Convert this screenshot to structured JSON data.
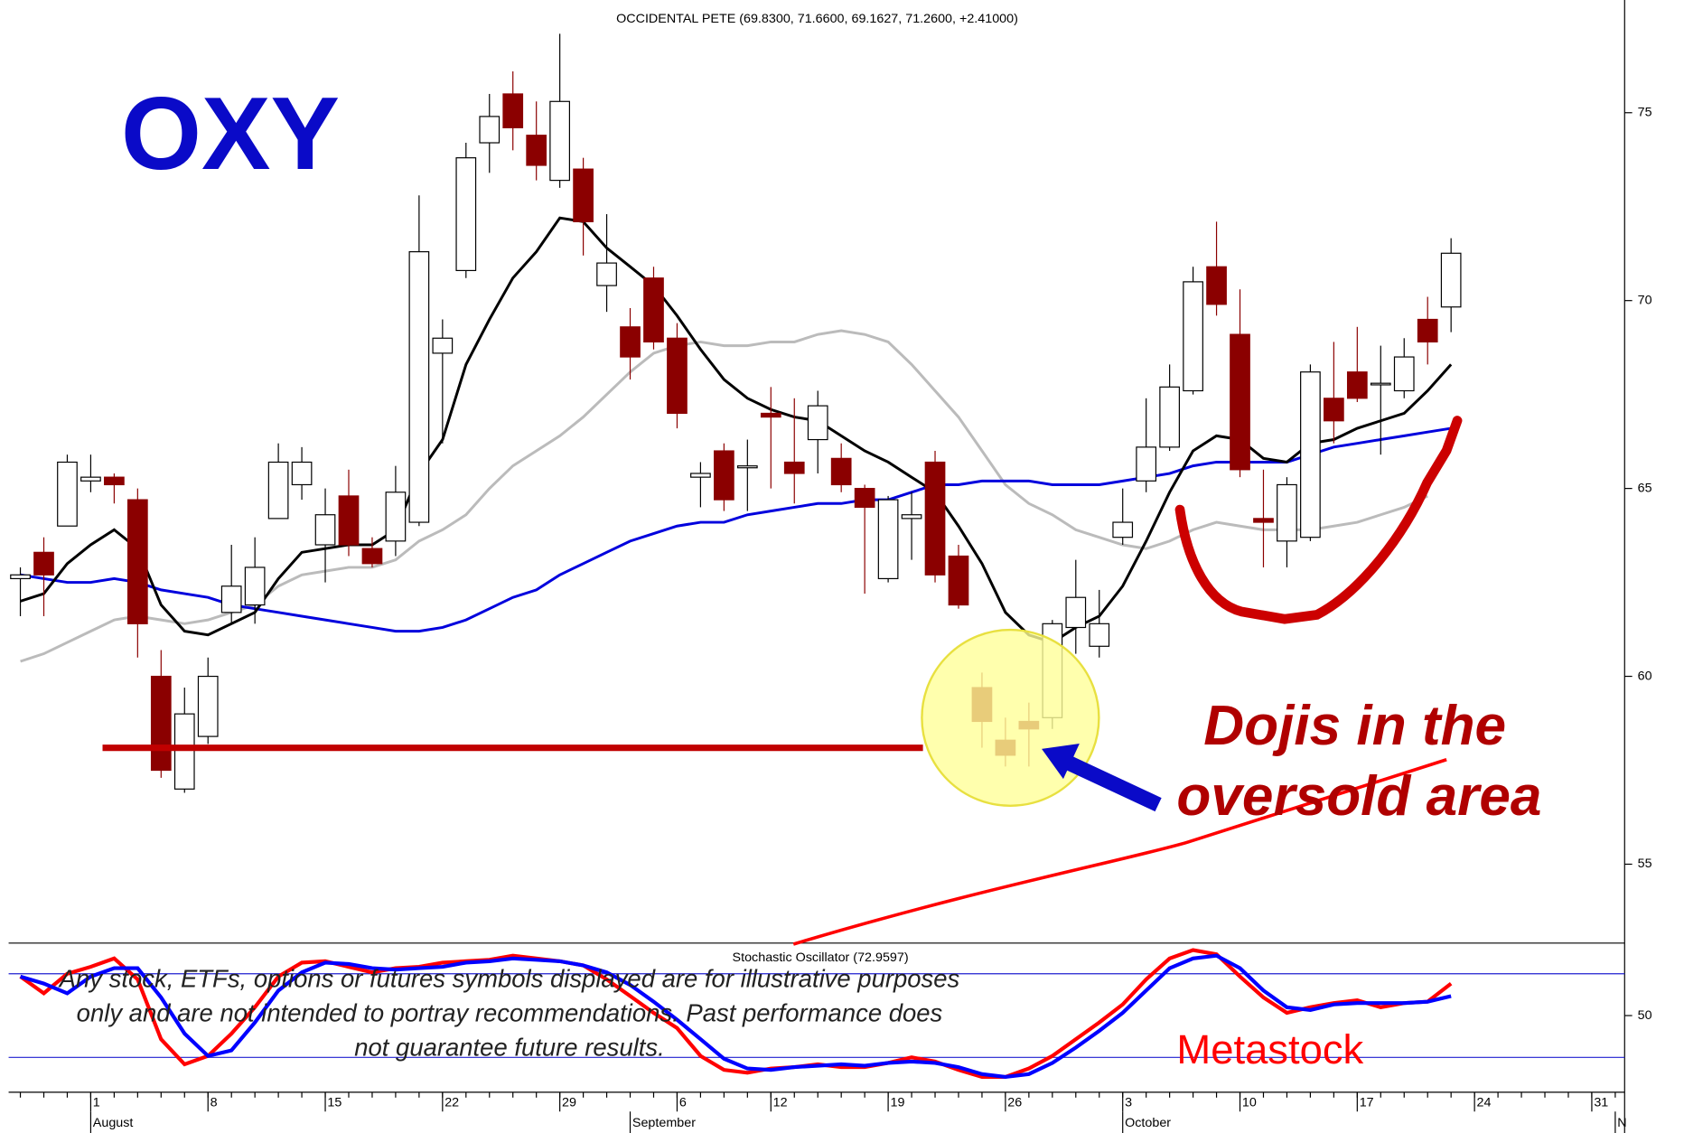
{
  "chart_data": [
    {
      "type": "candlestick",
      "title": "OCCIDENTAL PETE (69.8300, 71.6600, 69.1627, 71.2600, +2.41000)",
      "annotations": [
        "OXY",
        "Dojis in the",
        "oversold area"
      ],
      "x": [
        -3,
        -2,
        -1,
        0,
        1,
        2,
        3,
        4,
        5,
        6,
        7,
        8,
        9,
        10,
        11,
        12,
        13,
        14,
        15,
        16,
        17,
        18,
        19,
        20,
        21,
        22,
        23,
        24,
        25,
        26,
        27,
        28,
        29,
        30,
        31,
        32,
        33,
        34,
        35,
        36,
        37,
        38,
        39,
        40,
        41,
        42,
        43,
        44,
        45,
        46,
        47,
        48,
        49,
        50,
        51,
        52,
        53,
        54,
        55,
        56,
        57,
        58
      ],
      "open": [
        62.6,
        63.3,
        64.0,
        65.2,
        65.3,
        64.7,
        60.0,
        57.0,
        58.4,
        61.7,
        61.9,
        64.2,
        65.1,
        63.5,
        64.8,
        63.4,
        63.6,
        64.1,
        68.6,
        70.8,
        74.2,
        75.5,
        74.4,
        73.2,
        73.5,
        70.4,
        69.3,
        70.6,
        69.0,
        65.3,
        66.0,
        65.55,
        67.0,
        65.7,
        66.3,
        65.8,
        65.0,
        62.6,
        64.2,
        65.7,
        63.2,
        59.7,
        58.3,
        58.8,
        58.9,
        61.3,
        60.8,
        63.7,
        65.2,
        66.1,
        67.6,
        70.9,
        69.1,
        64.2,
        63.6,
        63.7,
        67.4,
        68.1,
        67.8,
        67.6,
        69.5,
        69.83
      ],
      "high": [
        62.9,
        63.7,
        65.9,
        65.9,
        65.4,
        65.0,
        60.7,
        59.7,
        60.5,
        63.5,
        63.7,
        66.2,
        66.1,
        65.0,
        65.5,
        63.7,
        65.6,
        72.8,
        69.5,
        74.2,
        75.5,
        76.1,
        75.3,
        77.1,
        73.8,
        72.3,
        69.8,
        70.9,
        69.4,
        65.7,
        66.2,
        66.3,
        67.7,
        67.4,
        67.6,
        66.2,
        65.1,
        64.8,
        64.9,
        66.0,
        63.5,
        60.1,
        58.9,
        59.3,
        61.5,
        63.1,
        62.3,
        65.0,
        67.4,
        68.3,
        70.9,
        72.1,
        70.3,
        65.5,
        65.3,
        68.3,
        68.9,
        69.3,
        68.8,
        69.0,
        70.1,
        71.66
      ],
      "low": [
        61.6,
        61.6,
        64.0,
        64.9,
        64.6,
        60.5,
        57.3,
        56.9,
        58.2,
        61.4,
        61.4,
        64.2,
        64.7,
        62.5,
        63.2,
        62.9,
        63.2,
        64.0,
        66.2,
        70.6,
        73.4,
        74.0,
        73.2,
        73.0,
        71.2,
        69.7,
        67.9,
        68.7,
        66.6,
        64.5,
        64.4,
        64.4,
        65.0,
        64.6,
        65.4,
        64.9,
        62.2,
        62.5,
        63.1,
        62.5,
        61.8,
        58.1,
        57.6,
        57.6,
        58.6,
        60.6,
        60.5,
        63.5,
        64.9,
        66.0,
        67.5,
        69.6,
        65.3,
        62.9,
        62.9,
        63.6,
        66.2,
        67.3,
        65.9,
        67.4,
        68.3,
        69.16
      ],
      "close": [
        62.7,
        62.7,
        65.7,
        65.3,
        65.1,
        61.4,
        57.5,
        59.0,
        60.0,
        62.4,
        62.9,
        65.7,
        65.7,
        64.3,
        63.5,
        63.0,
        64.9,
        71.3,
        69.0,
        73.8,
        74.9,
        74.6,
        73.6,
        75.3,
        72.1,
        71.0,
        68.5,
        68.9,
        67.0,
        65.4,
        64.7,
        65.6,
        66.9,
        65.4,
        67.2,
        65.1,
        64.5,
        64.7,
        64.3,
        62.7,
        61.9,
        58.8,
        57.9,
        58.6,
        61.4,
        62.1,
        61.4,
        64.1,
        66.1,
        67.7,
        70.5,
        69.9,
        65.5,
        64.1,
        65.1,
        68.1,
        66.8,
        67.4,
        67.8,
        68.5,
        68.9,
        71.26
      ],
      "up_color": "#ffffff",
      "down_color": "#8b0000",
      "series": [
        {
          "color": "#bbbbbb",
          "values": [
            60.4,
            60.6,
            60.9,
            61.2,
            61.5,
            61.6,
            61.5,
            61.4,
            61.5,
            61.7,
            61.9,
            62.4,
            62.7,
            62.8,
            62.9,
            62.9,
            63.1,
            63.6,
            63.9,
            64.3,
            65.0,
            65.6,
            66.0,
            66.4,
            66.9,
            67.5,
            68.1,
            68.6,
            68.8,
            68.9,
            68.8,
            68.8,
            68.9,
            68.9,
            69.1,
            69.2,
            69.1,
            68.9,
            68.3,
            67.6,
            66.9,
            66.0,
            65.1,
            64.6,
            64.3,
            63.9,
            63.7,
            63.5,
            63.4,
            63.6,
            63.9,
            64.1,
            64.0,
            63.9,
            63.9,
            63.9,
            64.0,
            64.1,
            64.3,
            64.5,
            64.8,
            null
          ]
        },
        {
          "color": "#0000dd",
          "values": [
            62.7,
            62.6,
            62.5,
            62.5,
            62.6,
            62.5,
            62.3,
            62.2,
            62.1,
            61.9,
            61.8,
            61.7,
            61.6,
            61.5,
            61.4,
            61.3,
            61.2,
            61.2,
            61.3,
            61.5,
            61.8,
            62.1,
            62.3,
            62.7,
            63.0,
            63.3,
            63.6,
            63.8,
            64.0,
            64.1,
            64.1,
            64.3,
            64.4,
            64.5,
            64.6,
            64.6,
            64.7,
            64.7,
            64.9,
            65.1,
            65.1,
            65.2,
            65.2,
            65.2,
            65.1,
            65.1,
            65.1,
            65.2,
            65.3,
            65.4,
            65.6,
            65.7,
            65.7,
            65.7,
            65.7,
            65.9,
            66.1,
            66.2,
            66.3,
            66.4,
            66.5,
            66.6
          ]
        },
        {
          "color": "#000000",
          "values": [
            62.0,
            62.2,
            63.0,
            63.5,
            63.9,
            63.4,
            61.9,
            61.2,
            61.1,
            61.4,
            61.7,
            62.6,
            63.3,
            63.4,
            63.5,
            63.5,
            63.9,
            65.4,
            66.3,
            68.3,
            69.5,
            70.6,
            71.3,
            72.2,
            72.1,
            71.4,
            70.9,
            70.4,
            69.6,
            68.7,
            67.9,
            67.4,
            67.1,
            66.9,
            66.8,
            66.4,
            66.0,
            65.7,
            65.3,
            64.9,
            64.0,
            63.0,
            61.7,
            61.1,
            60.9,
            61.3,
            61.6,
            62.4,
            63.6,
            64.9,
            66.0,
            66.4,
            66.3,
            65.8,
            65.7,
            66.2,
            66.3,
            66.6,
            66.8,
            67.0,
            67.6,
            68.3
          ]
        }
      ],
      "xlim": [
        -3.5,
        65.4
      ],
      "ylim": [
        52.9,
        78
      ],
      "yticks": [
        55,
        60,
        65,
        70,
        75
      ]
    },
    {
      "type": "line",
      "title": "Stochastic Oscillator (72.9597)",
      "annotations": [
        "Metastock"
      ],
      "x": [
        -3,
        -2,
        -1,
        0,
        1,
        2,
        3,
        4,
        5,
        6,
        7,
        8,
        9,
        10,
        11,
        12,
        13,
        14,
        15,
        16,
        17,
        18,
        19,
        20,
        21,
        22,
        23,
        24,
        25,
        26,
        27,
        28,
        29,
        30,
        31,
        32,
        33,
        34,
        35,
        36,
        37,
        38,
        39,
        40,
        41,
        42,
        43,
        44,
        45,
        46,
        47,
        48,
        49,
        50,
        51,
        52,
        53,
        54,
        55,
        56,
        57,
        58
      ],
      "series": [
        {
          "color": "#ff0000",
          "values": [
            78,
            66,
            80,
            85,
            91,
            76,
            33,
            15,
            21,
            37,
            56,
            78,
            88,
            89,
            85,
            81,
            84,
            85,
            88,
            89,
            90,
            93,
            91,
            89,
            86,
            76,
            64,
            52,
            41,
            21,
            11,
            9,
            12,
            13,
            15,
            13,
            13,
            16,
            20,
            17,
            11,
            6,
            6,
            12,
            21,
            33,
            45,
            58,
            76,
            91,
            97,
            94,
            78,
            63,
            52,
            56,
            59,
            61,
            56,
            59,
            60,
            73
          ]
        },
        {
          "color": "#0000ff",
          "values": [
            78,
            73,
            66,
            78,
            84,
            84,
            63,
            37,
            21,
            25,
            45,
            68,
            81,
            88,
            87,
            84,
            83,
            84,
            85,
            88,
            89,
            91,
            90,
            89,
            86,
            81,
            72,
            60,
            47,
            33,
            19,
            12,
            11,
            13,
            14,
            15,
            14,
            16,
            17,
            16,
            13,
            8,
            6,
            8,
            16,
            27,
            39,
            52,
            68,
            84,
            91,
            93,
            84,
            68,
            56,
            54,
            58,
            59,
            59,
            59,
            60,
            64
          ]
        }
      ],
      "hlines": [
        80,
        20
      ],
      "hline_color": "#2020d0",
      "xlim": [
        -3.5,
        65.4
      ],
      "ylim": [
        -5,
        102
      ],
      "yticks": [
        50
      ],
      "xticks": [
        {
          "value": 0,
          "label": "1"
        },
        {
          "value": 5,
          "label": "8"
        },
        {
          "value": 10,
          "label": "15"
        },
        {
          "value": 15,
          "label": "22"
        },
        {
          "value": 20,
          "label": "29"
        },
        {
          "value": 25,
          "label": "6"
        },
        {
          "value": 29,
          "label": "12"
        },
        {
          "value": 34,
          "label": "19"
        },
        {
          "value": 39,
          "label": "26"
        },
        {
          "value": 44,
          "label": "3"
        },
        {
          "value": 49,
          "label": "10"
        },
        {
          "value": 54,
          "label": "17"
        },
        {
          "value": 59,
          "label": "24"
        },
        {
          "value": 64,
          "label": "31"
        }
      ],
      "month_labels": [
        {
          "value": 0,
          "label": "August"
        },
        {
          "value": 23,
          "label": "September"
        },
        {
          "value": 44,
          "label": "October"
        },
        {
          "value": 65,
          "label": "N"
        }
      ]
    }
  ],
  "disclaimer": [
    "Any stock, ETFs, options or futures symbols displayed are for illustrative purposes",
    "only and are not intended to portray recommendations. Past performance does",
    "not guarantee future results."
  ]
}
